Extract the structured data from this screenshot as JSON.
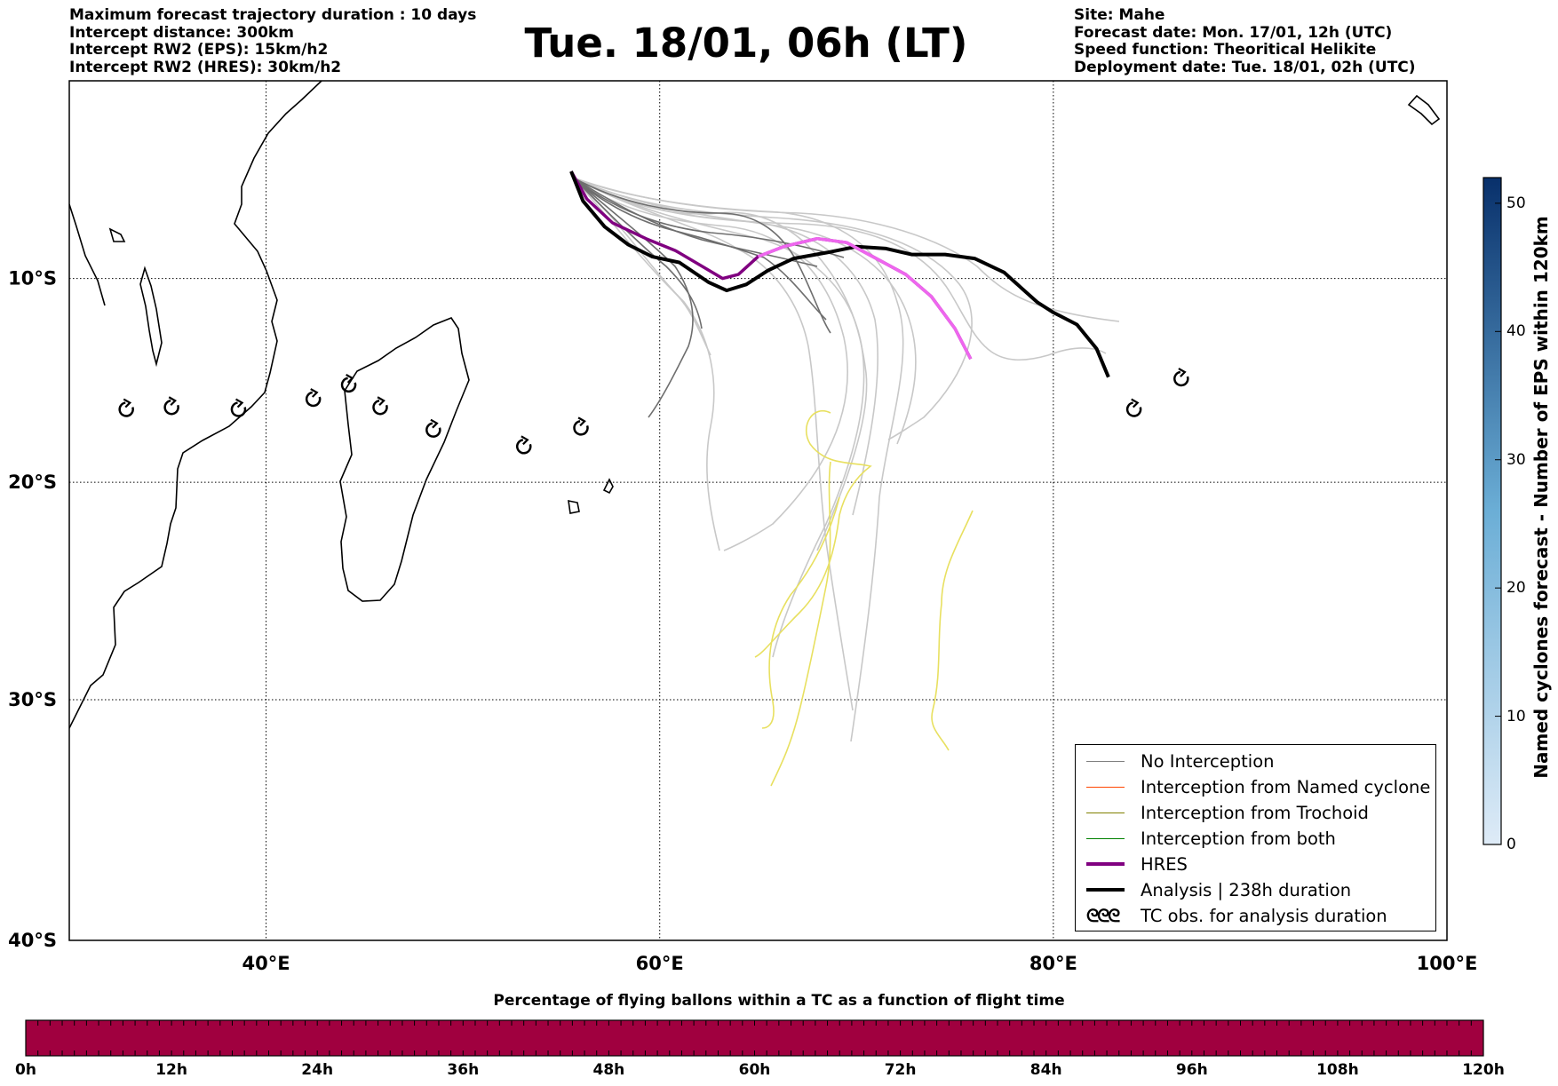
{
  "header_left": [
    "Maximum forecast trajectory duration : 10 days",
    "Intercept distance: 300km",
    "Intercept RW2 (EPS):  15km/h2",
    "Intercept RW2 (HRES): 30km/h2"
  ],
  "title": "Tue. 18/01, 06h (LT)",
  "header_right": [
    "Site: Mahe",
    "Forecast date: Mon. 17/01, 12h (UTC)",
    "Speed function: Theoritical Helikite",
    "Deployment date: Tue. 18/01, 02h (UTC)"
  ],
  "map": {
    "lon_range": [
      30,
      100
    ],
    "lat_range": [
      -40,
      0
    ],
    "lon_ticks": [
      40,
      60,
      80,
      100
    ],
    "lon_tick_labels": [
      "40°E",
      "60°E",
      "80°E",
      "100°E"
    ],
    "lat_ticks": [
      -10,
      -20,
      -30,
      -40
    ],
    "lat_tick_labels": [
      "10°S",
      "20°S",
      "30°S",
      "40°S"
    ],
    "site": {
      "name": "Mahe",
      "lon": 55.5,
      "lat": -4.6
    },
    "hres_track": [
      [
        55.5,
        -4.6
      ],
      [
        56.3,
        -6.0
      ],
      [
        57.6,
        -7.2
      ],
      [
        59.3,
        -8.0
      ],
      [
        60.8,
        -8.6
      ],
      [
        62.0,
        -9.3
      ],
      [
        63.2,
        -10.0
      ],
      [
        64.0,
        -9.8
      ],
      [
        65.0,
        -8.9
      ],
      [
        66.3,
        -8.4
      ],
      [
        68.0,
        -8.0
      ],
      [
        69.5,
        -8.2
      ],
      [
        71.0,
        -9.0
      ],
      [
        72.5,
        -9.8
      ],
      [
        73.8,
        -10.9
      ],
      [
        75.0,
        -12.5
      ],
      [
        75.8,
        -14.0
      ]
    ],
    "analysis_track": [
      [
        55.5,
        -4.6
      ],
      [
        56.1,
        -6.1
      ],
      [
        57.2,
        -7.4
      ],
      [
        58.4,
        -8.3
      ],
      [
        59.6,
        -8.9
      ],
      [
        61.0,
        -9.2
      ],
      [
        62.5,
        -10.2
      ],
      [
        63.4,
        -10.6
      ],
      [
        64.4,
        -10.3
      ],
      [
        65.5,
        -9.6
      ],
      [
        66.8,
        -9.0
      ],
      [
        68.5,
        -8.7
      ],
      [
        70.0,
        -8.4
      ],
      [
        71.5,
        -8.5
      ],
      [
        72.8,
        -8.8
      ],
      [
        74.5,
        -8.8
      ],
      [
        76.0,
        -9.0
      ],
      [
        77.5,
        -9.7
      ],
      [
        78.4,
        -10.5
      ],
      [
        79.2,
        -11.2
      ],
      [
        80.0,
        -11.7
      ],
      [
        81.2,
        -12.3
      ],
      [
        82.2,
        -13.5
      ],
      [
        82.8,
        -14.9
      ]
    ],
    "tc_obs": [
      [
        32.9,
        -16.5
      ],
      [
        35.2,
        -16.4
      ],
      [
        38.6,
        -16.5
      ],
      [
        42.4,
        -16.0
      ],
      [
        44.2,
        -15.3
      ],
      [
        45.8,
        -16.4
      ],
      [
        48.5,
        -17.5
      ],
      [
        53.1,
        -18.3
      ],
      [
        56.0,
        -17.4
      ],
      [
        84.1,
        -16.5
      ],
      [
        86.5,
        -15.0
      ]
    ]
  },
  "legend": {
    "items": [
      {
        "label": "No Interception",
        "color": "#808080",
        "style": "thin"
      },
      {
        "label": "Interception from Named cyclone",
        "color": "#ff4500",
        "style": "thin"
      },
      {
        "label": "Interception from Trochoid",
        "color": "#808000",
        "style": "thin"
      },
      {
        "label": "Interception from both",
        "color": "#008000",
        "style": "thin"
      },
      {
        "label": "HRES",
        "color": "#800080",
        "style": "thick"
      },
      {
        "label": "Analysis | 238h duration",
        "color": "#000000",
        "style": "thick"
      },
      {
        "label": "TC obs. for analysis duration",
        "color": "#000000",
        "style": "icon",
        "icon": "ᘓᘓᘓ"
      }
    ]
  },
  "colorbar_vertical": {
    "title": "Named cyclones forecast - Number of EPS within 120km",
    "ticks": [
      "0",
      "10",
      "20",
      "30",
      "40",
      "50"
    ],
    "min": 0,
    "max": 52,
    "color_low": "#deebf7",
    "color_high": "#08306b"
  },
  "colorbar_horizontal": {
    "title": "Percentage of flying ballons within a TC as a function of flight time",
    "color": "#a0003f",
    "ticks": [
      "0h",
      "12h",
      "24h",
      "36h",
      "48h",
      "60h",
      "72h",
      "84h",
      "96h",
      "108h",
      "120h"
    ]
  }
}
